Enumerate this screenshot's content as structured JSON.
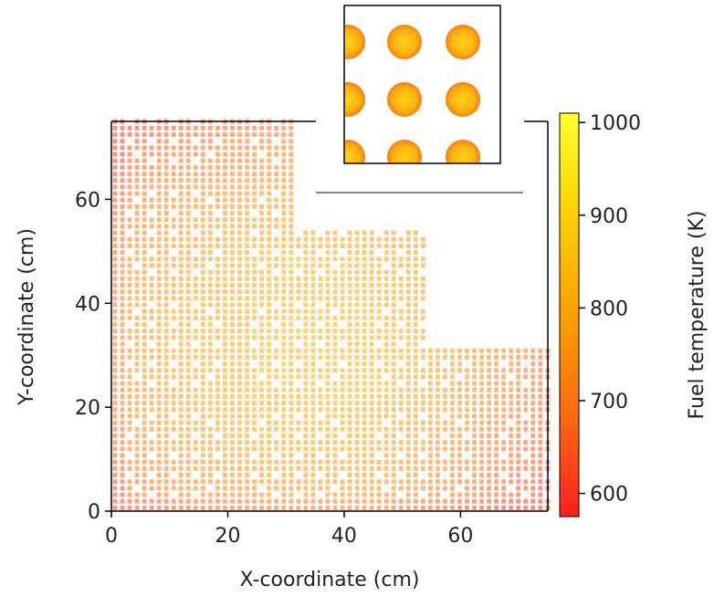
{
  "chart_data": {
    "type": "heatmap",
    "description_note": "",
    "xlabel": "X-coordinate (cm)",
    "ylabel": "Y-coordinate (cm)",
    "xlim": [
      0,
      75
    ],
    "ylim": [
      0,
      75
    ],
    "xticks": [
      "0",
      "20",
      "40",
      "60"
    ],
    "yticks": [
      "0",
      "20",
      "40",
      "60"
    ],
    "colorbar": {
      "label": "Fuel temperature (K)",
      "range": [
        575,
        1010
      ],
      "ticks": [
        "600",
        "700",
        "800",
        "900",
        "1000"
      ],
      "colormap": [
        "#ff2020",
        "#ff6a10",
        "#ffa000",
        "#ffd000",
        "#ffff30"
      ]
    },
    "domain_region": {
      "step_boundaries_x": [
        32,
        54,
        75
      ],
      "step_heights_y": [
        75,
        54,
        32
      ]
    },
    "field": {
      "min_temperature_k": 600,
      "max_temperature_k": 820,
      "peak_location": [
        33,
        33
      ]
    },
    "inset": {
      "pins_temperature_k": [
        880,
        900,
        920
      ]
    }
  }
}
